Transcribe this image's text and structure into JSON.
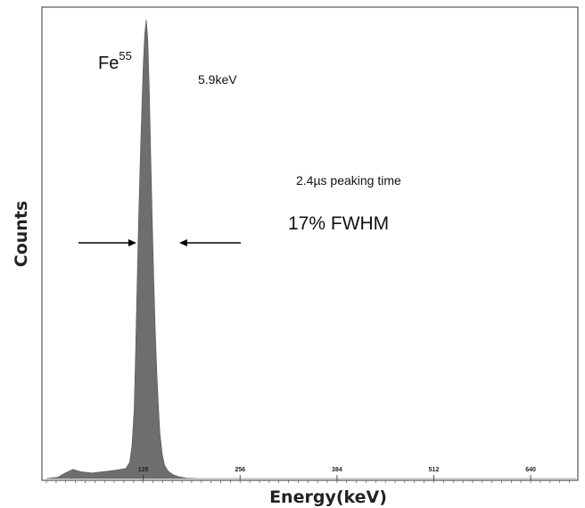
{
  "chart_data": {
    "type": "area",
    "xlabel": "Energy(keV)",
    "ylabel": "Counts",
    "xlim": [
      0,
      700
    ],
    "ylim": [
      0,
      1
    ],
    "x_ticks": [
      128,
      256,
      384,
      512,
      640
    ],
    "grid": false,
    "legend": "none",
    "fill_color": "#6e6e6e",
    "series": [
      {
        "x": [
          0,
          15,
          25,
          35,
          45,
          60,
          80,
          95,
          105,
          110,
          113,
          116,
          118,
          120,
          122,
          124,
          126,
          128,
          130,
          132,
          134,
          136,
          138,
          140,
          142,
          144,
          146,
          148,
          150,
          153,
          156,
          160,
          164,
          168,
          175,
          185,
          200,
          700
        ],
        "y": [
          0,
          0.003,
          0.012,
          0.02,
          0.015,
          0.012,
          0.016,
          0.019,
          0.022,
          0.035,
          0.07,
          0.15,
          0.28,
          0.43,
          0.57,
          0.69,
          0.8,
          0.9,
          0.97,
          1.0,
          0.96,
          0.85,
          0.7,
          0.56,
          0.43,
          0.32,
          0.23,
          0.16,
          0.1,
          0.055,
          0.03,
          0.018,
          0.012,
          0.008,
          0.004,
          0.001,
          0,
          0
        ]
      }
    ],
    "annotations": {
      "isotope": "Fe",
      "isotope_mass": "55",
      "energy": "5.9keV",
      "peaking_time": "2.4µs peaking time",
      "fwhm": "17% FWHM"
    }
  }
}
